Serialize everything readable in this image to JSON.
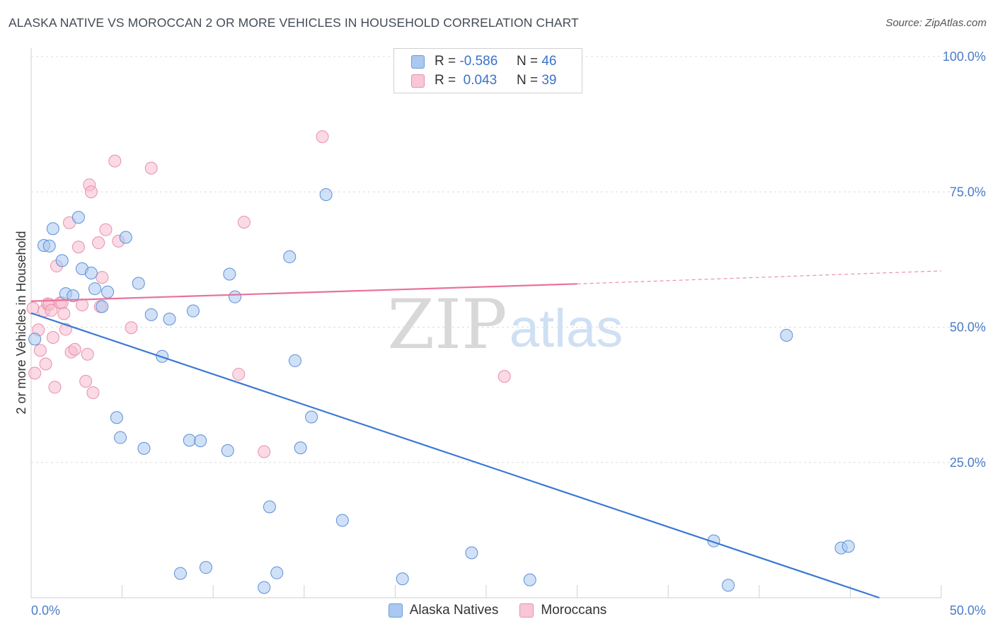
{
  "title": "ALASKA NATIVE VS MOROCCAN 2 OR MORE VEHICLES IN HOUSEHOLD CORRELATION CHART",
  "source": "Source: ZipAtlas.com",
  "watermark": {
    "zip": "ZIP",
    "atlas": "atlas"
  },
  "legend": {
    "rows": [
      {
        "r_label": "R =",
        "r_value": "-0.586",
        "n_label": "N =",
        "n_value": "46",
        "color": "#aac8f0",
        "border": "#6a9de0"
      },
      {
        "r_label": "R =",
        "r_value": " 0.043",
        "n_label": "N =",
        "n_value": "39",
        "color": "#f8c6d6",
        "border": "#e890ab"
      }
    ]
  },
  "bottom_legend": {
    "series1": "Alaska Natives",
    "series2": "Moroccans"
  },
  "colors": {
    "blue": "#3a78d4",
    "blue_fill": "#aac8f0",
    "pink": "#e8729a",
    "pink_fill": "#f6bccd",
    "axis_text": "#4a7cc7"
  },
  "chart_data": {
    "type": "scatter",
    "title": "ALASKA NATIVE VS MOROCCAN 2 OR MORE VEHICLES IN HOUSEHOLD CORRELATION CHART",
    "xlabel": "",
    "ylabel": "2 or more Vehicles in Household",
    "xlim": [
      0,
      50
    ],
    "ylim": [
      0,
      100
    ],
    "x_tick_labels": [
      "0.0%",
      "50.0%"
    ],
    "y_tick_labels": [
      "100.0%",
      "75.0%",
      "50.0%",
      "25.0%"
    ],
    "y_ticks": [
      100,
      75,
      50,
      25
    ],
    "grid": true,
    "legend_position": "top-center",
    "series": [
      {
        "name": "Alaska Natives",
        "r": -0.586,
        "n": 46,
        "trend": {
          "x": [
            0,
            46.6
          ],
          "y": [
            52.6,
            0
          ]
        },
        "points": [
          [
            0.2,
            47.8
          ],
          [
            0.7,
            65.1
          ],
          [
            1.0,
            65.0
          ],
          [
            1.2,
            68.2
          ],
          [
            1.7,
            62.3
          ],
          [
            1.9,
            56.2
          ],
          [
            2.3,
            55.8
          ],
          [
            2.6,
            70.3
          ],
          [
            2.8,
            60.8
          ],
          [
            3.3,
            60.0
          ],
          [
            3.5,
            57.1
          ],
          [
            3.9,
            53.8
          ],
          [
            4.2,
            56.5
          ],
          [
            4.7,
            33.3
          ],
          [
            4.9,
            29.6
          ],
          [
            5.2,
            66.6
          ],
          [
            5.9,
            58.1
          ],
          [
            6.2,
            27.6
          ],
          [
            6.6,
            52.3
          ],
          [
            7.2,
            44.6
          ],
          [
            7.6,
            51.5
          ],
          [
            8.2,
            4.5
          ],
          [
            8.7,
            29.1
          ],
          [
            8.9,
            53.0
          ],
          [
            9.3,
            29.0
          ],
          [
            9.6,
            5.6
          ],
          [
            10.8,
            27.2
          ],
          [
            10.9,
            59.8
          ],
          [
            11.2,
            55.6
          ],
          [
            12.8,
            1.9
          ],
          [
            13.1,
            16.8
          ],
          [
            13.5,
            4.6
          ],
          [
            14.2,
            63.0
          ],
          [
            14.5,
            43.8
          ],
          [
            14.8,
            27.7
          ],
          [
            15.4,
            33.4
          ],
          [
            16.2,
            74.5
          ],
          [
            17.1,
            14.3
          ],
          [
            20.4,
            3.5
          ],
          [
            24.2,
            8.3
          ],
          [
            27.4,
            3.3
          ],
          [
            37.5,
            10.5
          ],
          [
            38.3,
            2.3
          ],
          [
            41.5,
            48.5
          ],
          [
            44.5,
            9.2
          ],
          [
            44.9,
            9.5
          ]
        ]
      },
      {
        "name": "Moroccans",
        "r": 0.043,
        "n": 39,
        "trend": {
          "x": [
            0,
            30
          ],
          "y": [
            54.8,
            58.0
          ]
        },
        "trend_dashed": {
          "x": [
            30,
            50
          ],
          "y": [
            58.0,
            60.4
          ]
        },
        "points": [
          [
            0.1,
            53.5
          ],
          [
            0.2,
            41.5
          ],
          [
            0.4,
            49.5
          ],
          [
            0.5,
            45.7
          ],
          [
            0.7,
            53.0
          ],
          [
            0.8,
            43.2
          ],
          [
            0.9,
            54.3
          ],
          [
            1.0,
            54.2
          ],
          [
            1.1,
            53.1
          ],
          [
            1.2,
            48.1
          ],
          [
            1.3,
            38.9
          ],
          [
            1.4,
            61.3
          ],
          [
            1.6,
            54.5
          ],
          [
            1.7,
            54.5
          ],
          [
            1.8,
            52.5
          ],
          [
            1.9,
            49.6
          ],
          [
            2.1,
            69.3
          ],
          [
            2.2,
            45.4
          ],
          [
            2.4,
            45.9
          ],
          [
            2.6,
            64.8
          ],
          [
            2.8,
            54.1
          ],
          [
            3.0,
            40.0
          ],
          [
            3.1,
            45.0
          ],
          [
            3.2,
            76.3
          ],
          [
            3.3,
            75.0
          ],
          [
            3.4,
            37.9
          ],
          [
            3.7,
            65.6
          ],
          [
            3.9,
            59.2
          ],
          [
            4.1,
            68.0
          ],
          [
            4.6,
            80.7
          ],
          [
            4.8,
            65.9
          ],
          [
            5.5,
            49.9
          ],
          [
            6.6,
            79.4
          ],
          [
            11.4,
            41.3
          ],
          [
            11.7,
            69.4
          ],
          [
            12.8,
            27.0
          ],
          [
            16.0,
            85.2
          ],
          [
            26.0,
            40.9
          ],
          [
            3.8,
            53.8
          ]
        ]
      }
    ]
  }
}
